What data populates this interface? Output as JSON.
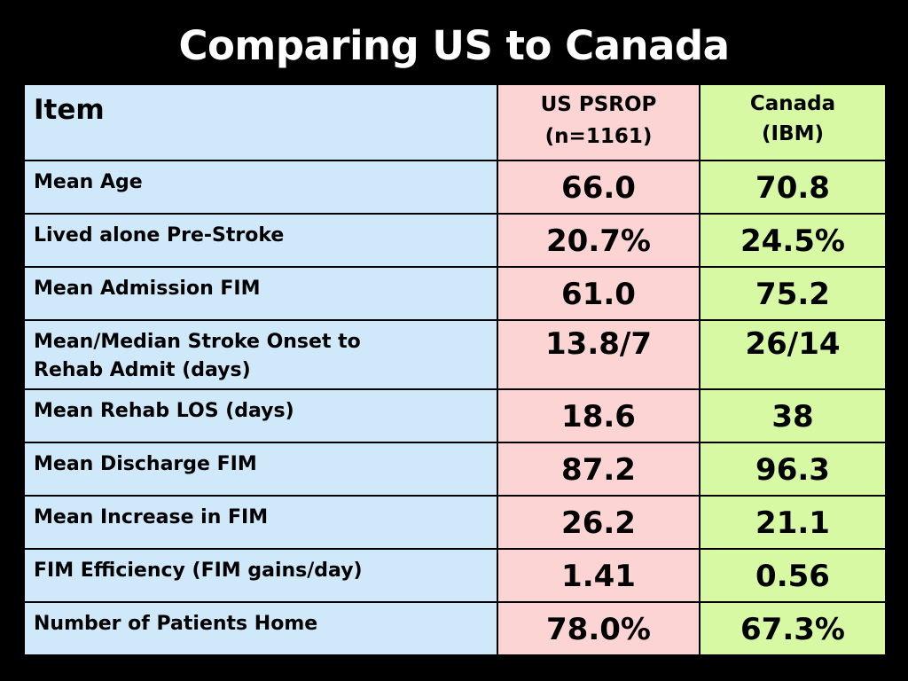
{
  "title": "Comparing US to Canada",
  "table": {
    "header": {
      "item": "Item",
      "us_line1": "US PSROP",
      "us_line2": "(n=1161)",
      "canada_line1": "Canada",
      "canada_line2": "(IBM)"
    },
    "rows": [
      {
        "label": "Mean Age",
        "us": "66.0",
        "canada": "70.8"
      },
      {
        "label": "Lived alone Pre-Stroke",
        "us": "20.7%",
        "canada": "24.5%"
      },
      {
        "label": "Mean Admission FIM",
        "us": "61.0",
        "canada": "75.2"
      },
      {
        "label_line1": "Mean/Median Stroke Onset to",
        "label_line2": "Rehab Admit (days)",
        "us": "13.8/7",
        "canada": "26/14"
      },
      {
        "label": "Mean Rehab LOS (days)",
        "us": "18.6",
        "canada": "38"
      },
      {
        "label": "Mean Discharge FIM",
        "us": "87.2",
        "canada": "96.3"
      },
      {
        "label": "Mean Increase in FIM",
        "us": "26.2",
        "canada": "21.1"
      },
      {
        "label": "FIM Efficiency (FIM gains/day)",
        "us": "1.41",
        "canada": "0.56"
      },
      {
        "label": "Number of Patients Home",
        "us": "78.0%",
        "canada": "67.3%"
      }
    ]
  },
  "colors": {
    "background": "#000000",
    "title": "#ffffff",
    "item_column": "#cfe9fb",
    "us_column": "#fcd4d4",
    "canada_column": "#d7f9a4"
  }
}
